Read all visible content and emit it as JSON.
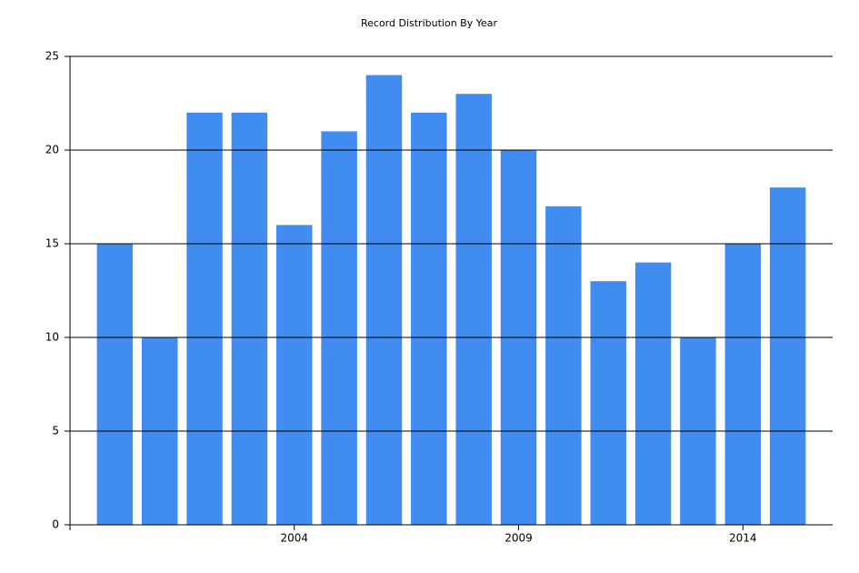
{
  "chart_data": {
    "type": "bar",
    "title": "Record Distribution By Year",
    "x": [
      2000,
      2001,
      2002,
      2003,
      2004,
      2005,
      2006,
      2007,
      2008,
      2009,
      2010,
      2011,
      2012,
      2013,
      2014,
      2015
    ],
    "values": [
      15,
      10,
      22,
      22,
      16,
      21,
      24,
      22,
      23,
      20,
      17,
      13,
      14,
      10,
      15,
      18
    ],
    "color": "#418cf0",
    "xlim": [
      1999,
      2016
    ],
    "xticks": [
      2004,
      2009,
      2014
    ],
    "ylim": [
      0,
      25
    ],
    "yticks": [
      0,
      5,
      10,
      15,
      20,
      25
    ],
    "grid": true
  }
}
